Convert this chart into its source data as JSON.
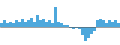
{
  "values": [
    0.3,
    0.5,
    0.3,
    0.4,
    0.3,
    0.5,
    0.4,
    0.6,
    0.4,
    0.5,
    0.7,
    0.4,
    0.9,
    0.5,
    0.6,
    0.4,
    0.5,
    0.3,
    1.5,
    0.4,
    0.3,
    0.2,
    0.15,
    -0.05,
    -0.1,
    -0.05,
    -0.1,
    -0.6,
    -1.0,
    -0.8,
    -0.5,
    -0.3,
    0.5,
    0.6,
    0.5,
    0.3,
    0.5,
    0.4,
    0.5,
    0.3
  ],
  "bar_color": "#4ea8dc",
  "background_color": "#ffffff",
  "ylim": [
    -1.3,
    2.0
  ]
}
